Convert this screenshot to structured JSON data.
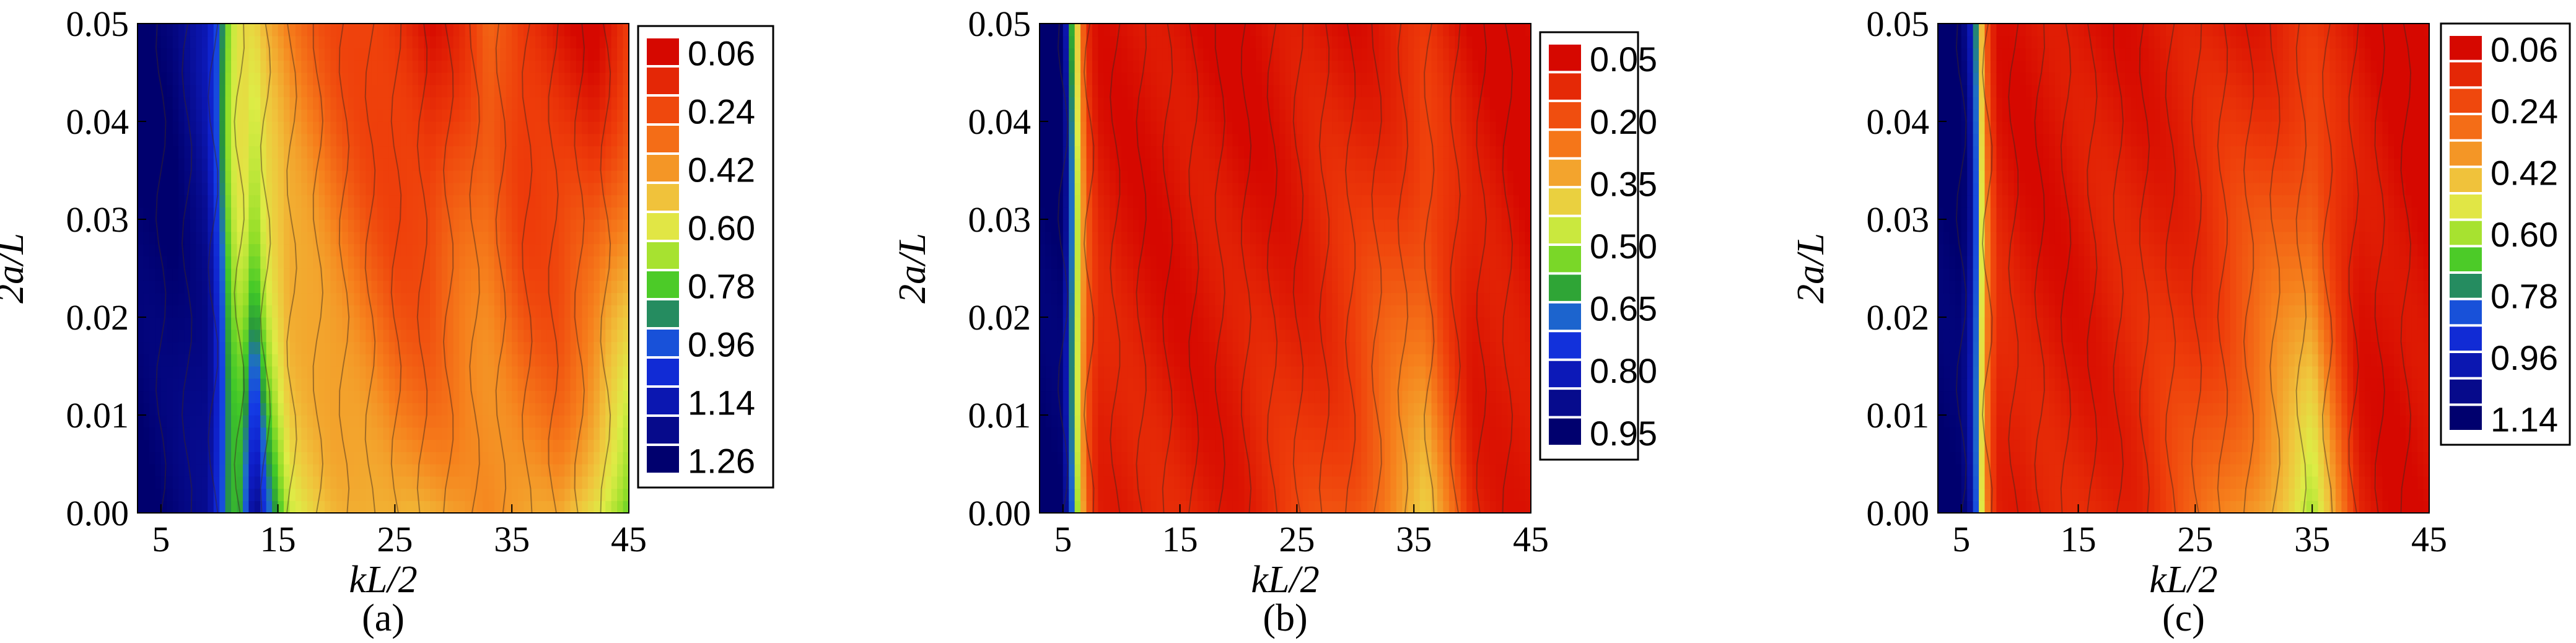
{
  "chart_data": [
    {
      "type": "heatmap",
      "panel_label": "(a)",
      "xlabel": "kL/2",
      "ylabel": "2a/L",
      "xlim": [
        3,
        45
      ],
      "ylim": [
        0,
        0.05
      ],
      "x_ticks": [
        "5",
        "15",
        "25",
        "35",
        "45"
      ],
      "y_ticks": [
        "0.00",
        "0.01",
        "0.02",
        "0.03",
        "0.04",
        "0.05"
      ],
      "colorbar_labels": [
        "0.06",
        "0.24",
        "0.42",
        "0.60",
        "0.78",
        "0.96",
        "1.14",
        "1.26"
      ],
      "value_range": [
        0.06,
        1.26
      ],
      "colorbar_levels": 15,
      "profile_x": [
        3,
        6,
        9,
        10,
        11,
        12,
        13,
        14,
        16,
        20,
        25,
        28,
        31,
        33,
        36,
        39,
        42,
        45
      ],
      "profile_bottom": [
        1.26,
        1.24,
        1.2,
        1.0,
        0.78,
        0.8,
        1.2,
        0.9,
        0.6,
        0.5,
        0.42,
        0.45,
        0.45,
        0.4,
        0.4,
        0.42,
        0.6,
        0.75
      ],
      "profile_top": [
        1.26,
        1.24,
        1.1,
        0.9,
        0.62,
        0.5,
        0.5,
        0.42,
        0.35,
        0.25,
        0.15,
        0.08,
        0.2,
        0.3,
        0.15,
        0.1,
        0.06,
        0.2
      ]
    },
    {
      "type": "heatmap",
      "panel_label": "(b)",
      "xlabel": "kL/2",
      "ylabel": "2a/L",
      "xlim": [
        3,
        45
      ],
      "ylim": [
        0,
        0.05
      ],
      "x_ticks": [
        "5",
        "15",
        "25",
        "35",
        "45"
      ],
      "y_ticks": [
        "0.00",
        "0.01",
        "0.02",
        "0.03",
        "0.04",
        "0.05"
      ],
      "colorbar_labels": [
        "0.05",
        "0.20",
        "0.35",
        "0.50",
        "0.65",
        "0.80",
        "0.95"
      ],
      "value_range": [
        0.05,
        0.95
      ],
      "colorbar_levels": 14,
      "profile_x": [
        3,
        5,
        6,
        7,
        8,
        10,
        14,
        20,
        25,
        30,
        33,
        36,
        38,
        40,
        45
      ],
      "profile_bottom": [
        0.95,
        0.95,
        0.6,
        0.25,
        0.12,
        0.1,
        0.1,
        0.1,
        0.15,
        0.22,
        0.3,
        0.38,
        0.25,
        0.12,
        0.08
      ],
      "profile_top": [
        0.95,
        0.95,
        0.5,
        0.15,
        0.08,
        0.07,
        0.06,
        0.06,
        0.07,
        0.08,
        0.1,
        0.12,
        0.08,
        0.06,
        0.05
      ]
    },
    {
      "type": "heatmap",
      "panel_label": "(c)",
      "xlabel": "kL/2",
      "ylabel": "2a/L",
      "xlim": [
        3,
        45
      ],
      "ylim": [
        0,
        0.05
      ],
      "x_ticks": [
        "5",
        "15",
        "25",
        "35",
        "45"
      ],
      "y_ticks": [
        "0.00",
        "0.01",
        "0.02",
        "0.03",
        "0.04",
        "0.05"
      ],
      "colorbar_labels": [
        "0.06",
        "0.24",
        "0.42",
        "0.60",
        "0.78",
        "0.96",
        "1.14"
      ],
      "value_range": [
        0.06,
        1.14
      ],
      "colorbar_levels": 15,
      "profile_x": [
        3,
        5,
        6,
        7,
        8,
        10,
        14,
        20,
        25,
        30,
        33,
        35,
        37,
        39,
        42,
        45
      ],
      "profile_bottom": [
        1.14,
        1.14,
        1.0,
        0.4,
        0.15,
        0.12,
        0.12,
        0.15,
        0.25,
        0.4,
        0.5,
        0.6,
        0.35,
        0.12,
        0.08,
        0.08
      ],
      "profile_top": [
        1.14,
        1.14,
        0.95,
        0.3,
        0.1,
        0.08,
        0.08,
        0.1,
        0.1,
        0.12,
        0.15,
        0.15,
        0.1,
        0.08,
        0.06,
        0.06
      ]
    }
  ]
}
